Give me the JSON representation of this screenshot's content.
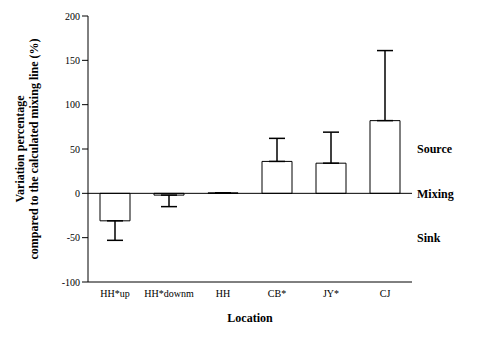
{
  "chart_data": {
    "type": "bar",
    "categories": [
      "HH*up",
      "HH*downm",
      "HH",
      "CB*",
      "JY*",
      "CJ"
    ],
    "values": [
      -31,
      -2,
      0.5,
      36,
      34,
      82
    ],
    "errors": [
      22,
      13,
      0,
      26,
      35,
      79
    ],
    "color": "#ffffff",
    "x_label": "Location",
    "y_label": [
      "Variation percentage",
      "compared to the calculated mixing line (%)"
    ],
    "ylim": [
      -100,
      200
    ],
    "yticks": [
      -100,
      -50,
      0,
      50,
      100,
      150,
      200
    ],
    "grid": false,
    "annotations": [
      {
        "text": "Source",
        "y": 50
      },
      {
        "text": "Mixing",
        "y": 0
      },
      {
        "text": "Sink",
        "y": -50
      }
    ]
  }
}
